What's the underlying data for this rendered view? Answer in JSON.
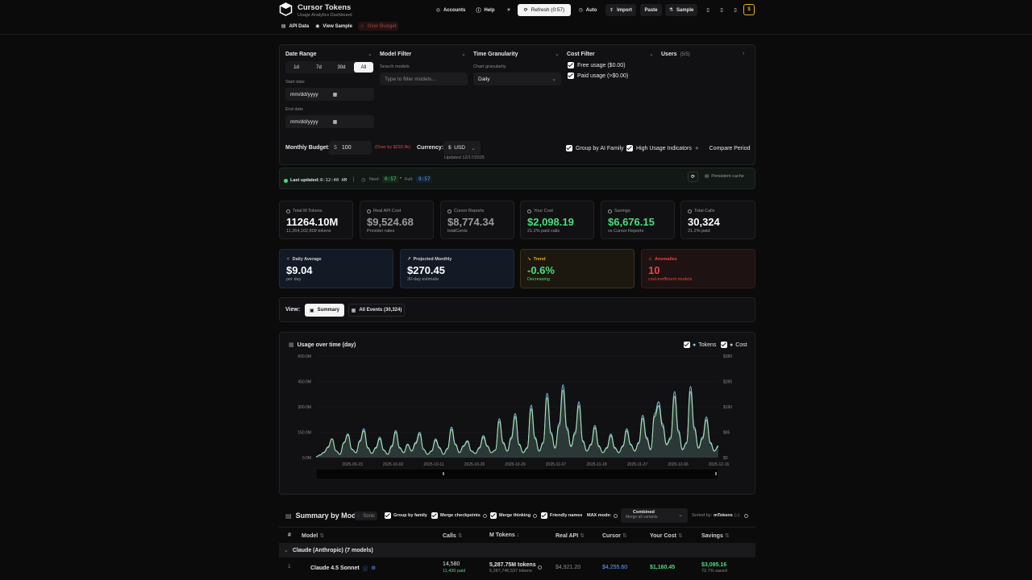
{
  "header": {
    "title": "Cursor Tokens",
    "subtitle": "Usage Analytics Dashboard",
    "accounts": "Accounts",
    "help": "Help",
    "refresh": "Refresh (0:57)",
    "auto": "Auto",
    "import": "Import",
    "paste": "Paste",
    "sample": "Sample"
  },
  "subnav": {
    "api_data": "API Data",
    "view_sample": "View Sample",
    "over_budget": "Over Budget"
  },
  "filters": {
    "date_range": "Date Range",
    "ranges": [
      "1d",
      "7d",
      "30d",
      "All"
    ],
    "start_date": "Start date",
    "end_date": "End date",
    "date_placeholder": "mm/dd/yyyy",
    "model_filter": "Model Filter",
    "search_models": "Search models",
    "model_placeholder": "Type to filter models...",
    "time_granularity": "Time Granularity",
    "chart_granularity": "Chart granularity",
    "granularity_value": "Daily",
    "cost_filter": "Cost Filter",
    "free_usage": "Free usage ($0.00)",
    "paid_usage": "Paid usage (>$0.00)",
    "users": "Users",
    "users_count": "(5/5)"
  },
  "budget": {
    "label": "Monthly Budget:",
    "symbol": "$",
    "value": "100",
    "over": "(Over by $233.9k)",
    "currency_label": "Currency:",
    "currency_value": "$  USD",
    "updated": "Updated 12/17/2025",
    "group_family": "Group by AI Family",
    "high_usage": "High Usage Indicators",
    "compare": "Compare Period"
  },
  "status": {
    "last_updated": "Last updated:",
    "time": "8:12:40 AM",
    "sep": "|",
    "next_label": "Next:",
    "next_value": "0:57",
    "dot": "•",
    "full_label": "Full:",
    "full_value": "9:57",
    "persistent": "Persistent cache"
  },
  "stats": [
    {
      "label": "Total M Tokens",
      "value": "11264.10M",
      "sub": "11,264,102,809 tokens",
      "color": "#ffffff"
    },
    {
      "label": "Real API Cost",
      "value": "$9,524.68",
      "sub": "Provider rates",
      "color": "#9a9a9a"
    },
    {
      "label": "Cursor Reports",
      "value": "$8,774.34",
      "sub": "totalCents",
      "color": "#9a9a9a"
    },
    {
      "label": "Your Cost",
      "value": "$2,098.19",
      "sub": "21.2% paid calls",
      "color": "#4ade80"
    },
    {
      "label": "Savings",
      "value": "$6,676.15",
      "sub": "vs Cursor Reports",
      "color": "#4ade80"
    },
    {
      "label": "Total Calls",
      "value": "30,324",
      "sub": "21.2% paid",
      "color": "#ffffff"
    }
  ],
  "highlights": [
    {
      "label": "Daily Average",
      "value": "$9.04",
      "sub": "per day",
      "color": "#ffffff"
    },
    {
      "label": "Projected Monthly",
      "value": "$270.45",
      "sub": "30-day estimate",
      "color": "#ffffff"
    },
    {
      "label": "Trend",
      "value": "-0.6%",
      "sub": "Decreasing",
      "color": "#4ade80"
    },
    {
      "label": "Anomalies",
      "value": "10",
      "sub": "cost-inefficient models",
      "color": "#ef4444"
    }
  ],
  "view": {
    "label": "View:",
    "summary": "Summary",
    "all_events": "All Events (30,324)"
  },
  "chart": {
    "title": "Usage over time (day)",
    "legend_tokens": "Tokens",
    "legend_cost": "Cost"
  },
  "chart_data": {
    "type": "area",
    "title": "Usage over time (day)",
    "x_ticks": [
      "2025-09-23",
      "2025-10-02",
      "2025-10-11",
      "2025-10-20",
      "2025-10-29",
      "2025-11-07",
      "2025-11-18",
      "2025-11-27",
      "2025-12-06",
      "2025-12-16"
    ],
    "y_left_ticks": [
      "600.0M",
      "450.0M",
      "300.0M",
      "150.0M",
      "0.0M"
    ],
    "y_right_ticks": [
      "$380",
      "$285",
      "$190",
      "$95",
      "$0"
    ],
    "ylim_left": [
      0,
      600
    ],
    "ylim_right": [
      0,
      380
    ],
    "series": [
      {
        "name": "Tokens",
        "unit": "M",
        "color": "#7cc4e0",
        "values": [
          5,
          15,
          30,
          60,
          110,
          40,
          20,
          90,
          140,
          50,
          30,
          100,
          170,
          60,
          25,
          60,
          120,
          45,
          20,
          70,
          160,
          60,
          30,
          80,
          40,
          90,
          150,
          50,
          20,
          40,
          110,
          60,
          20,
          55,
          180,
          80,
          30,
          70,
          100,
          40,
          25,
          60,
          130,
          70,
          30,
          45,
          230,
          90,
          40,
          120,
          260,
          80,
          30,
          60,
          310,
          120,
          40,
          90,
          380,
          150,
          60,
          200,
          430,
          180,
          70,
          150,
          330,
          100,
          40,
          80,
          190,
          70,
          30,
          60,
          140,
          60,
          30,
          70,
          170,
          80,
          40,
          90,
          250,
          120,
          50,
          260,
          330,
          200,
          80,
          120,
          390,
          160,
          50,
          90,
          420,
          180,
          60,
          120,
          240,
          90,
          40,
          70
        ]
      },
      {
        "name": "Cost",
        "unit": "$",
        "color": "#a8dcaa",
        "values": [
          3,
          10,
          20,
          40,
          70,
          25,
          12,
          55,
          85,
          30,
          18,
          60,
          100,
          35,
          15,
          35,
          70,
          27,
          12,
          40,
          95,
          35,
          18,
          48,
          24,
          52,
          88,
          30,
          12,
          24,
          65,
          35,
          12,
          32,
          105,
          48,
          18,
          42,
          60,
          24,
          15,
          35,
          76,
          42,
          18,
          27,
          135,
          53,
          24,
          70,
          153,
          47,
          18,
          35,
          182,
          70,
          24,
          53,
          223,
          88,
          35,
          117,
          252,
          105,
          41,
          88,
          194,
          59,
          24,
          47,
          112,
          41,
          18,
          35,
          82,
          35,
          18,
          41,
          100,
          47,
          24,
          53,
          147,
          70,
          29,
          153,
          194,
          117,
          47,
          70,
          229,
          94,
          29,
          53,
          247,
          105,
          35,
          70,
          141,
          53,
          24,
          41
        ]
      }
    ]
  },
  "summary": {
    "title": "Summary by Model",
    "sonic": "Sonic",
    "group_family": "Group by family",
    "merge_checkpoints": "Merge checkpoints",
    "merge_thinking": "Merge thinking",
    "friendly_names": "Friendly names",
    "max_mode": "MAX mode:",
    "combined": "Combined",
    "combined_sub": "Merge all variants",
    "sorted_by": "Sorted by:",
    "sorted_field": "mTokens",
    "sorted_dir": "(↓)",
    "columns": [
      "#",
      "Model",
      "Calls",
      "M Tokens",
      "Real API",
      "Cursor",
      "Your Cost",
      "Savings"
    ],
    "group_row": "Claude (Anthropic) (7 models)",
    "row": {
      "index": "1",
      "model": "Claude 4.5 Sonnet",
      "calls": "14,580",
      "calls_paid": "11,430 paid",
      "mtokens": "5,287.75M tokens",
      "mtokens_sub": "5,287,746,537 tokens",
      "real_api": "$4,921.20",
      "cursor": "$4,255.60",
      "your_cost": "$1,160.45",
      "savings": "$3,095.16",
      "savings_pct": "72.7% saved"
    }
  }
}
